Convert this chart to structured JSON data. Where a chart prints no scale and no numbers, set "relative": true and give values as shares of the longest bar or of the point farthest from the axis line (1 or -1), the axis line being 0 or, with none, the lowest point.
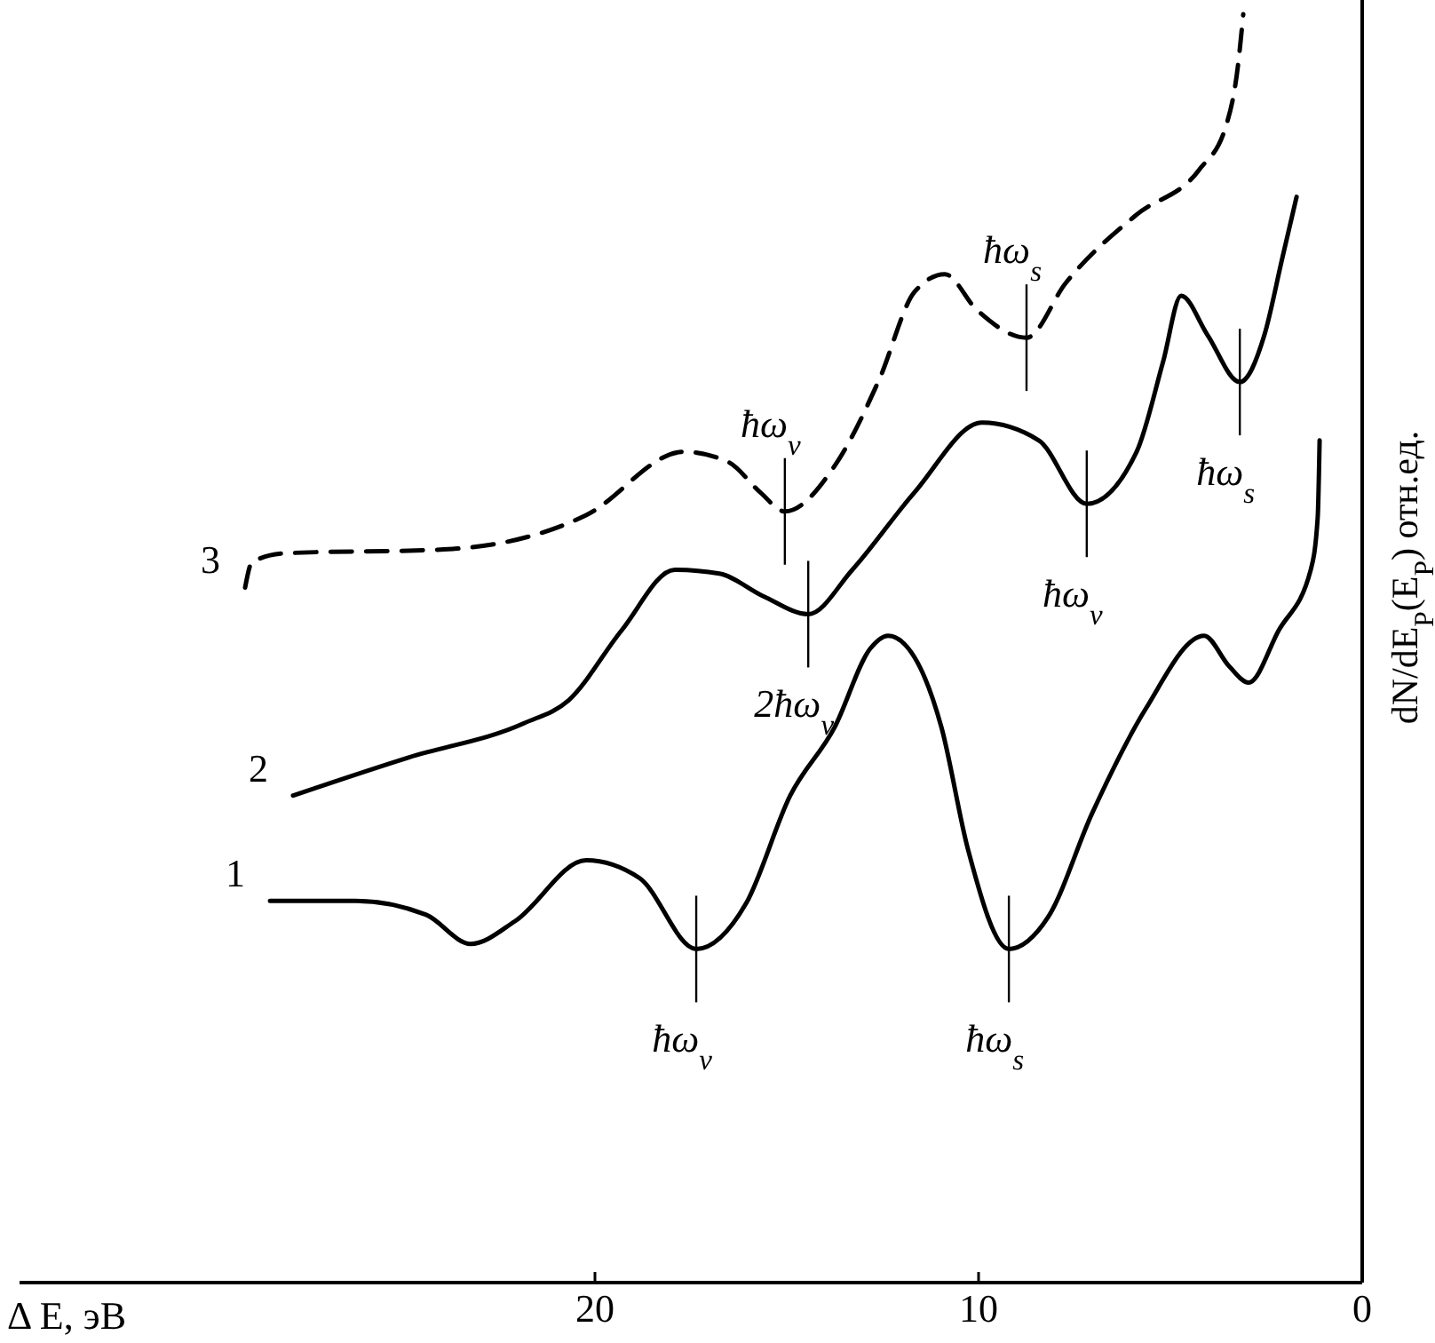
{
  "chart_data": {
    "type": "line",
    "relative": true,
    "xlabel": "Δ E, эВ",
    "ylabel": "dN/dE$_{P}$(E$_{P}$)  отн.ед.",
    "xlim": [
      35,
      0
    ],
    "xticks": [
      20,
      10,
      0
    ],
    "grid": false,
    "marker": "none",
    "series": [
      {
        "name": "1",
        "color": "#000000",
        "x": [
          28.47,
          26.25,
          24.4,
          23.24,
          22.08,
          20.23,
          18.84,
          17.36,
          16.06,
          14.91,
          13.75,
          12.82,
          12.36,
          11.67,
          10.97,
          10.28,
          9.21,
          8.19,
          7.04,
          5.65,
          4.12,
          3.47,
          2.96,
          2.18,
          1.34,
          1.16,
          1.11
        ],
        "values": [
          0.301,
          0.301,
          0.29,
          0.267,
          0.285,
          0.333,
          0.319,
          0.263,
          0.299,
          0.384,
          0.438,
          0.5,
          0.51,
          0.493,
          0.438,
          0.342,
          0.263,
          0.288,
          0.37,
          0.452,
          0.51,
          0.486,
          0.473,
          0.514,
          0.562,
          0.603,
          0.664
        ]
      },
      {
        "name": "2",
        "color": "#000000",
        "x": [
          27.87,
          24.86,
          21.85,
          20.69,
          19.31,
          17.92,
          16.76,
          15.6,
          14.44,
          13.29,
          11.67,
          9.91,
          8.43,
          7.18,
          5.88,
          5.19,
          4.72,
          4.03,
          3.19,
          2.55,
          2.08,
          1.71
        ],
        "values": [
          0.384,
          0.414,
          0.441,
          0.459,
          0.514,
          0.562,
          0.559,
          0.541,
          0.527,
          0.562,
          0.623,
          0.678,
          0.664,
          0.614,
          0.655,
          0.726,
          0.778,
          0.747,
          0.71,
          0.747,
          0.808,
          0.856
        ]
      },
      {
        "name": "3",
        "color": "#000000",
        "line_style": "dashed",
        "x": [
          29.12,
          28.94,
          28.1,
          23.94,
          20.23,
          17.69,
          16.53,
          15.69,
          15.05,
          13.75,
          12.59,
          11.67,
          10.88,
          10.05,
          8.75,
          7.73,
          5.88,
          4.26,
          3.56,
          3.24,
          3.1
        ],
        "values": [
          0.548,
          0.568,
          0.575,
          0.578,
          0.605,
          0.655,
          0.647,
          0.623,
          0.608,
          0.644,
          0.712,
          0.781,
          0.795,
          0.767,
          0.745,
          0.788,
          0.842,
          0.877,
          0.911,
          0.959,
          1.0
        ]
      }
    ],
    "annotations": [
      {
        "text": "ħω$_{v}$",
        "x": 17.36,
        "y": 0.263
      },
      {
        "text": "ħω$_{s}$",
        "x": 9.21,
        "y": 0.263
      },
      {
        "text": "2ħω$_{v}$",
        "x": 14.44,
        "y": 0.527
      },
      {
        "text": "ħω$_{v}$",
        "x": 7.18,
        "y": 0.614
      },
      {
        "text": "ħω$_{s}$",
        "x": 3.19,
        "y": 0.71
      },
      {
        "text": "ħω$_{v}$",
        "x": 15.05,
        "y": 0.608
      },
      {
        "text": "ħω$_{s}$",
        "x": 8.75,
        "y": 0.745
      }
    ]
  }
}
